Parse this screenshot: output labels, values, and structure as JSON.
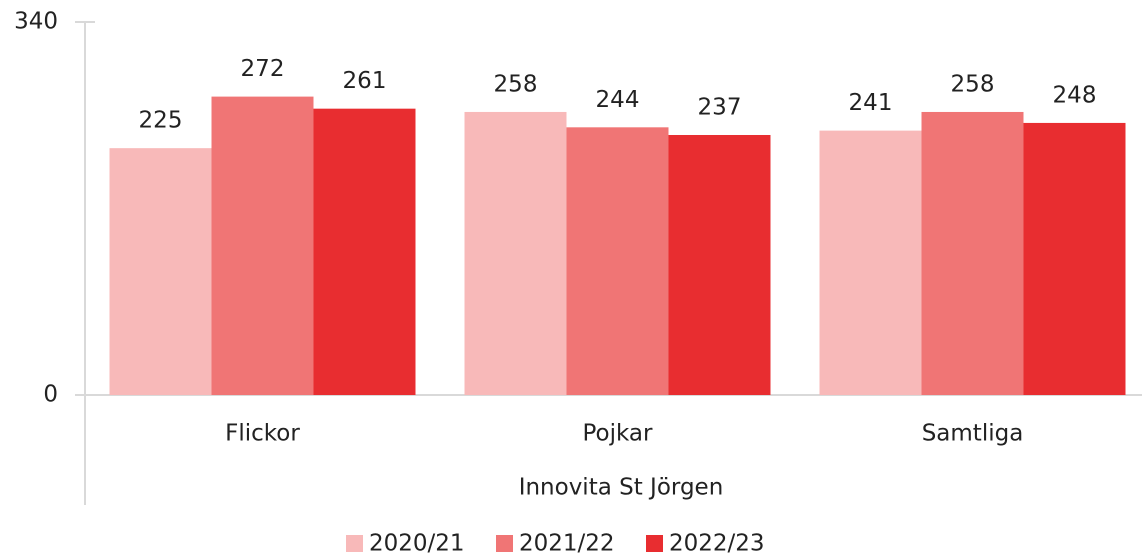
{
  "chart_data": {
    "type": "bar",
    "categories": [
      "Flickor",
      "Pojkar",
      "Samtliga"
    ],
    "xlabel": "Innovita St Jörgen",
    "series": [
      {
        "name": "2020/21",
        "color": "#f8b9b9",
        "values": [
          225,
          258,
          241
        ]
      },
      {
        "name": "2021/22",
        "color": "#f07575",
        "values": [
          272,
          244,
          258
        ]
      },
      {
        "name": "2022/23",
        "color": "#e82d30",
        "values": [
          261,
          237,
          248
        ]
      }
    ],
    "ylim": [
      0,
      340
    ],
    "yticks": [
      0,
      340
    ],
    "grid": false,
    "legend": "bottom"
  }
}
